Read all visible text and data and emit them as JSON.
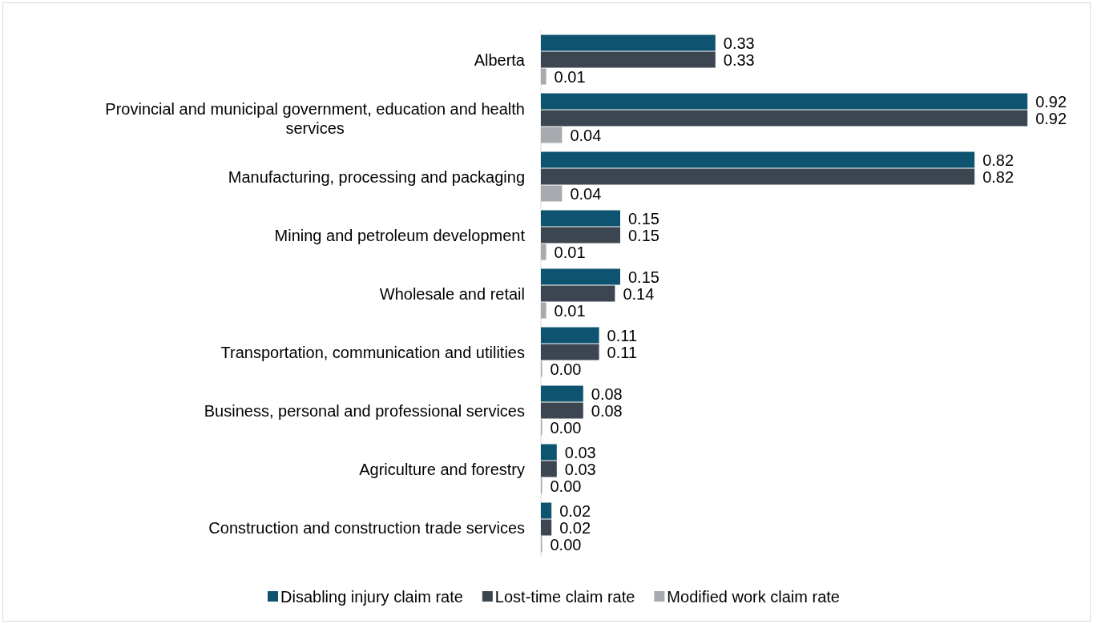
{
  "chart_data": {
    "type": "bar",
    "orientation": "horizontal",
    "legend": "bottom",
    "categories": [
      "Alberta",
      "Provincial and municipal government, education and health services",
      "Manufacturing, processing and packaging",
      "Mining and petroleum development",
      "Wholesale and retail",
      "Transportation, communication and utilities",
      "Business, personal and professional services",
      "Agriculture and forestry",
      "Construction and construction trade services"
    ],
    "series": [
      {
        "name": "Disabling injury claim rate",
        "color": "#0e5470",
        "values": [
          0.33,
          0.92,
          0.82,
          0.15,
          0.15,
          0.11,
          0.08,
          0.03,
          0.02
        ],
        "value_labels": [
          "0.33",
          "0.92",
          "0.82",
          "0.15",
          "0.15",
          "0.11",
          "0.08",
          "0.03",
          "0.02"
        ]
      },
      {
        "name": "Lost-time claim rate",
        "color": "#3b4650",
        "values": [
          0.33,
          0.92,
          0.82,
          0.15,
          0.14,
          0.11,
          0.08,
          0.03,
          0.02
        ],
        "value_labels": [
          "0.33",
          "0.92",
          "0.82",
          "0.15",
          "0.14",
          "0.11",
          "0.08",
          "0.03",
          "0.02"
        ]
      },
      {
        "name": "Modified work claim rate",
        "color": "#a7abaf",
        "values": [
          0.01,
          0.04,
          0.04,
          0.01,
          0.01,
          0.0,
          0.0,
          0.0,
          0.0
        ],
        "value_labels": [
          "0.01",
          "0.04",
          "0.04",
          "0.01",
          "0.01",
          "0.00",
          "0.00",
          "0.00",
          "0.00"
        ]
      }
    ]
  }
}
